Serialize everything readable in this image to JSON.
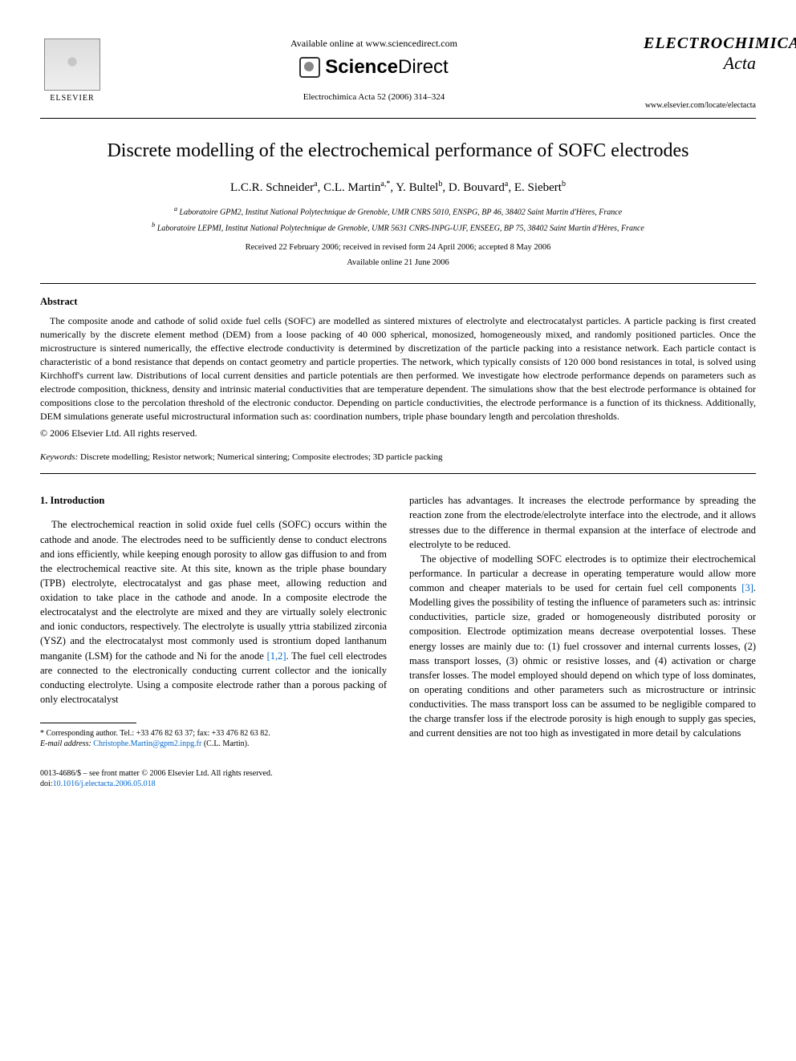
{
  "header": {
    "available_online": "Available online at www.sciencedirect.com",
    "sciencedirect": {
      "part1": "Science",
      "part2": "Direct"
    },
    "elsevier_label": "ELSEVIER",
    "journal_ref": "Electrochimica Acta 52 (2006) 314–324",
    "journal_name": "ELECTROCHIMICA",
    "journal_sub": "Acta",
    "journal_url": "www.elsevier.com/locate/electacta"
  },
  "title": "Discrete modelling of the electrochemical performance of SOFC electrodes",
  "authors_html": "L.C.R. Schneider <sup>a</sup>, C.L. Martin <sup>a,*</sup>, Y. Bultel <sup>b</sup>, D. Bouvard <sup>a</sup>, E. Siebert <sup>b</sup>",
  "authors": [
    {
      "name": "L.C.R. Schneider",
      "aff": "a"
    },
    {
      "name": "C.L. Martin",
      "aff": "a,*"
    },
    {
      "name": "Y. Bultel",
      "aff": "b"
    },
    {
      "name": "D. Bouvard",
      "aff": "a"
    },
    {
      "name": "E. Siebert",
      "aff": "b"
    }
  ],
  "affiliations": {
    "a": "Laboratoire GPM2, Institut National Polytechnique de Grenoble, UMR CNRS 5010, ENSPG, BP 46, 38402 Saint Martin d'Hères, France",
    "b": "Laboratoire LEPMI, Institut National Polytechnique de Grenoble, UMR 5631 CNRS-INPG-UJF, ENSEEG, BP 75, 38402 Saint Martin d'Hères, France"
  },
  "dates": {
    "received": "Received 22 February 2006; received in revised form 24 April 2006; accepted 8 May 2006",
    "online": "Available online 21 June 2006"
  },
  "abstract": {
    "heading": "Abstract",
    "text": "The composite anode and cathode of solid oxide fuel cells (SOFC) are modelled as sintered mixtures of electrolyte and electrocatalyst particles. A particle packing is first created numerically by the discrete element method (DEM) from a loose packing of 40 000 spherical, monosized, homogeneously mixed, and randomly positioned particles. Once the microstructure is sintered numerically, the effective electrode conductivity is determined by discretization of the particle packing into a resistance network. Each particle contact is characteristic of a bond resistance that depends on contact geometry and particle properties. The network, which typically consists of 120 000 bond resistances in total, is solved using Kirchhoff's current law. Distributions of local current densities and particle potentials are then performed. We investigate how electrode performance depends on parameters such as electrode composition, thickness, density and intrinsic material conductivities that are temperature dependent. The simulations show that the best electrode performance is obtained for compositions close to the percolation threshold of the electronic conductor. Depending on particle conductivities, the electrode performance is a function of its thickness. Additionally, DEM simulations generate useful microstructural information such as: coordination numbers, triple phase boundary length and percolation thresholds.",
    "copyright": "© 2006 Elsevier Ltd. All rights reserved."
  },
  "keywords": {
    "label": "Keywords:",
    "text": "Discrete modelling; Resistor network; Numerical sintering; Composite electrodes; 3D particle packing"
  },
  "section1": {
    "heading": "1.  Introduction",
    "col1_p1": "The electrochemical reaction in solid oxide fuel cells (SOFC) occurs within the cathode and anode. The electrodes need to be sufficiently dense to conduct electrons and ions efficiently, while keeping enough porosity to allow gas diffusion to and from the electrochemical reactive site. At this site, known as the triple phase boundary (TPB) electrolyte, electrocatalyst and gas phase meet, allowing reduction and oxidation to take place in the cathode and anode. In a composite electrode the electrocatalyst and the electrolyte are mixed and they are virtually solely electronic and ionic conductors, respectively. The electrolyte is usually yttria stabilized zirconia (YSZ) and the electrocatalyst most commonly used is strontium doped lanthanum manganite (LSM) for the cathode and Ni for the anode ",
    "ref12": "[1,2]",
    "col1_p1b": ". The fuel cell electrodes are connected to the electronically conducting current collector and the ionically conducting electrolyte. Using a composite electrode rather than a porous packing of only electrocatalyst",
    "col2_p1": "particles has advantages. It increases the electrode performance by spreading the reaction zone from the electrode/electrolyte interface into the electrode, and it allows stresses due to the difference in thermal expansion at the interface of electrode and electrolyte to be reduced.",
    "col2_p2a": "The objective of modelling SOFC electrodes is to optimize their electrochemical performance. In particular a decrease in operating temperature would allow more common and cheaper materials to be used for certain fuel cell components ",
    "ref3": "[3]",
    "col2_p2b": ". Modelling gives the possibility of testing the influence of parameters such as: intrinsic conductivities, particle size, graded or homogeneously distributed porosity or composition. Electrode optimization means decrease overpotential losses. These energy losses are mainly due to: (1) fuel crossover and internal currents losses, (2) mass transport losses, (3) ohmic or resistive losses, and (4) activation or charge transfer losses. The model employed should depend on which type of loss dominates, on operating conditions and other parameters such as microstructure or intrinsic conductivities. The mass transport loss can be assumed to be negligible compared to the charge transfer loss if the electrode porosity is high enough to supply gas species, and current densities are not too high as investigated in more detail by calculations"
  },
  "footnote": {
    "corresponding": "* Corresponding author. Tel.: +33 476 82 63 37; fax: +33 476 82 63 82.",
    "email_label": "E-mail address:",
    "email": "Christophe.Martin@gpm2.inpg.fr",
    "email_person": "(C.L. Martin)."
  },
  "footer": {
    "issn": "0013-4686/$ – see front matter © 2006 Elsevier Ltd. All rights reserved.",
    "doi_label": "doi:",
    "doi": "10.1016/j.electacta.2006.05.018"
  },
  "colors": {
    "link": "#0066cc",
    "text": "#000000",
    "background": "#ffffff"
  }
}
